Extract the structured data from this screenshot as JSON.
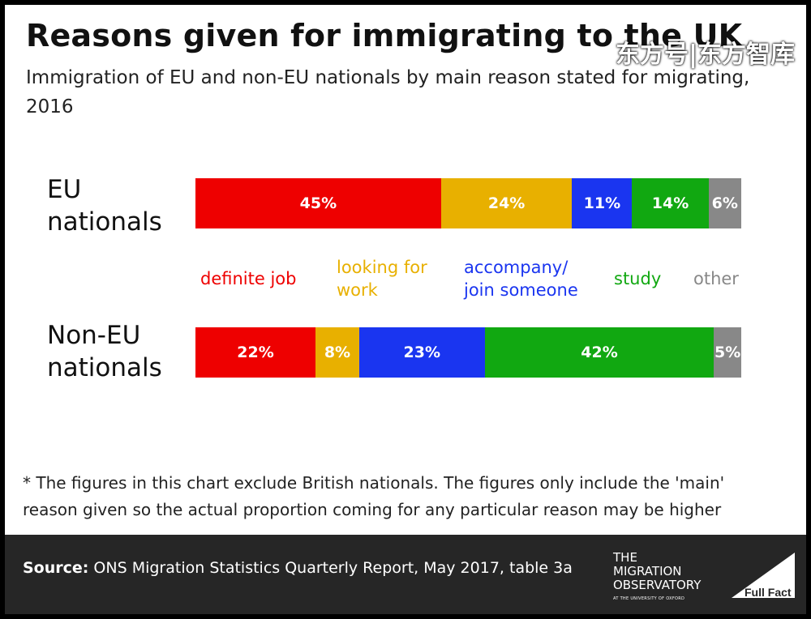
{
  "title": "Reasons given for immigrating to the UK",
  "subtitle": "Immigration of EU and non-EU nationals by main reason stated for migrating, 2016",
  "watermark": "东方号|东方智库",
  "footnote": "* The figures in this chart exclude British nationals. The figures only include the 'main' reason given so the actual proportion coming for any particular reason may be higher",
  "source_label": "Source:",
  "source_text": " ONS Migration Statistics Quarterly Report, May 2017, table 3a",
  "logos": {
    "mo_line1": "THE",
    "mo_line2": "MIGRATION",
    "mo_line3": "OBSERVATORY",
    "mo_line4": "AT THE UNIVERSITY OF OXFORD",
    "ff": "Full Fact"
  },
  "colors": {
    "definite job": "#ee0000",
    "looking for work": "#e8b000",
    "accompany/ join someone": "#1a35f0",
    "study": "#11a811",
    "other": "#888888"
  },
  "chart_data": {
    "type": "bar",
    "stacked": true,
    "orientation": "horizontal",
    "categories": [
      "EU nationals",
      "Non-EU nationals"
    ],
    "series": [
      {
        "name": "definite job",
        "values": [
          45,
          22
        ]
      },
      {
        "name": "looking for work",
        "values": [
          24,
          8
        ]
      },
      {
        "name": "accompany/ join someone",
        "values": [
          11,
          23
        ]
      },
      {
        "name": "study",
        "values": [
          14,
          42
        ]
      },
      {
        "name": "other",
        "values": [
          6,
          5
        ]
      }
    ],
    "unit": "%",
    "legend_position": "between bars"
  }
}
